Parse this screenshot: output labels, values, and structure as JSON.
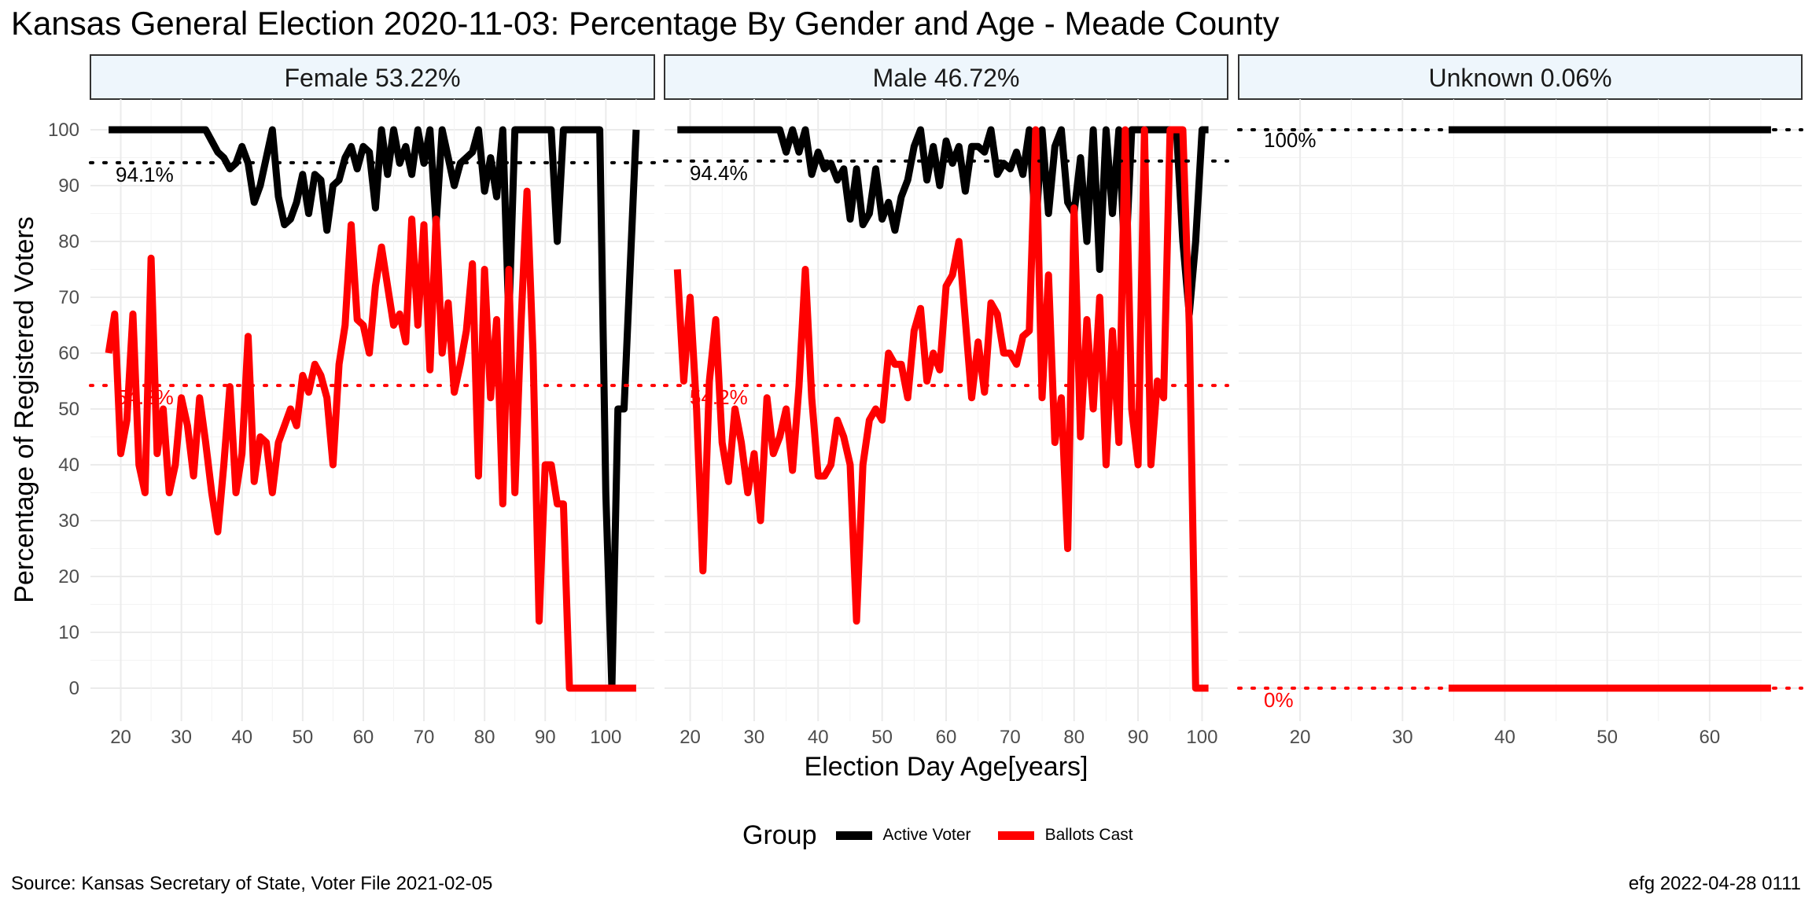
{
  "chart_data": {
    "type": "line",
    "title": "Kansas General Election 2020-11-03:  Percentage By Gender and Age - Meade County",
    "xlabel": "Election Day Age[years]",
    "ylabel": "Percentage of Registered Voters",
    "ylim": [
      0,
      100
    ],
    "y_ticks": [
      "0",
      "10",
      "20",
      "30",
      "40",
      "50",
      "60",
      "70",
      "80",
      "90",
      "100"
    ],
    "grid": true,
    "legend": {
      "title": "Group",
      "placement": "bottom",
      "entries": [
        {
          "name": "Active Voter",
          "color": "#000000"
        },
        {
          "name": "Ballots Cast",
          "color": "#ff0000"
        }
      ]
    },
    "panels": [
      {
        "strip": "Female 53.22%",
        "xlim": [
          15,
          108
        ],
        "x_ticks": [
          "20",
          "30",
          "40",
          "50",
          "60",
          "70",
          "80",
          "90",
          "100"
        ],
        "reference_lines": [
          {
            "series": "Active Voter",
            "value": 94.1,
            "label": "94.1%"
          },
          {
            "series": "Ballots Cast",
            "value": 54.2,
            "label": "54.2%"
          }
        ],
        "series": [
          {
            "name": "Active Voter",
            "color": "#000000",
            "x": [
              18,
              19,
              20,
              22,
              24,
              26,
              28,
              30,
              32,
              33,
              34,
              35,
              36,
              37,
              38,
              39,
              40,
              41,
              42,
              43,
              44,
              45,
              46,
              47,
              48,
              49,
              50,
              51,
              52,
              53,
              54,
              55,
              56,
              57,
              58,
              59,
              60,
              61,
              62,
              63,
              64,
              65,
              66,
              67,
              68,
              69,
              70,
              71,
              72,
              73,
              74,
              75,
              76,
              77,
              78,
              79,
              80,
              81,
              82,
              83,
              84,
              85,
              86,
              87,
              88,
              89,
              90,
              91,
              92,
              93,
              94,
              95,
              96,
              97,
              98,
              99,
              100,
              101,
              102,
              103,
              104,
              105
            ],
            "y": [
              100,
              100,
              100,
              100,
              100,
              100,
              100,
              100,
              100,
              100,
              100,
              98,
              96,
              95,
              93,
              94,
              97,
              94,
              87,
              90,
              95,
              100,
              88,
              83,
              84,
              87,
              92,
              85,
              92,
              91,
              82,
              90,
              91,
              95,
              97,
              93,
              97,
              96,
              86,
              100,
              92,
              100,
              94,
              97,
              92,
              100,
              94,
              100,
              83,
              100,
              95,
              90,
              94,
              95,
              96,
              100,
              89,
              95,
              88,
              100,
              66,
              100,
              100,
              100,
              100,
              100,
              100,
              100,
              80,
              100,
              100,
              100,
              100,
              100,
              100,
              100,
              35,
              0,
              50,
              50,
              75,
              100
            ]
          },
          {
            "name": "Ballots Cast",
            "color": "#ff0000",
            "x": [
              18,
              19,
              20,
              21,
              22,
              23,
              24,
              25,
              26,
              27,
              28,
              29,
              30,
              31,
              32,
              33,
              34,
              35,
              36,
              37,
              38,
              39,
              40,
              41,
              42,
              43,
              44,
              45,
              46,
              47,
              48,
              49,
              50,
              51,
              52,
              53,
              54,
              55,
              56,
              57,
              58,
              59,
              60,
              61,
              62,
              63,
              64,
              65,
              66,
              67,
              68,
              69,
              70,
              71,
              72,
              73,
              74,
              75,
              76,
              77,
              78,
              79,
              80,
              81,
              82,
              83,
              84,
              85,
              86,
              87,
              88,
              89,
              90,
              91,
              92,
              93,
              94,
              95,
              96,
              97,
              98,
              99,
              100,
              101,
              102,
              103,
              104,
              105
            ],
            "y": [
              60,
              67,
              42,
              48,
              67,
              40,
              35,
              77,
              42,
              50,
              35,
              40,
              52,
              47,
              38,
              52,
              44,
              35,
              28,
              40,
              54,
              35,
              42,
              63,
              37,
              45,
              44,
              35,
              44,
              47,
              50,
              47,
              56,
              53,
              58,
              56,
              52,
              40,
              58,
              65,
              83,
              66,
              65,
              60,
              72,
              79,
              72,
              65,
              67,
              62,
              84,
              65,
              83,
              57,
              84,
              60,
              69,
              53,
              58,
              64,
              76,
              38,
              75,
              52,
              66,
              33,
              75,
              35,
              65,
              89,
              60,
              12,
              40,
              40,
              33,
              33,
              0,
              0,
              0,
              0,
              0,
              0,
              0,
              0,
              0,
              0,
              0,
              0
            ]
          }
        ]
      },
      {
        "strip": "Male 46.72%",
        "xlim": [
          16,
          104
        ],
        "x_ticks": [
          "20",
          "30",
          "40",
          "50",
          "60",
          "70",
          "80",
          "90",
          "100"
        ],
        "reference_lines": [
          {
            "series": "Active Voter",
            "value": 94.4,
            "label": "94.4%"
          },
          {
            "series": "Ballots Cast",
            "value": 54.2,
            "label": "54.2%"
          }
        ],
        "series": [
          {
            "name": "Active Voter",
            "color": "#000000",
            "x": [
              18,
              20,
              22,
              24,
              26,
              28,
              30,
              32,
              33,
              34,
              35,
              36,
              37,
              38,
              39,
              40,
              41,
              42,
              43,
              44,
              45,
              46,
              47,
              48,
              49,
              50,
              51,
              52,
              53,
              54,
              55,
              56,
              57,
              58,
              59,
              60,
              61,
              62,
              63,
              64,
              65,
              66,
              67,
              68,
              69,
              70,
              71,
              72,
              73,
              74,
              75,
              76,
              77,
              78,
              79,
              80,
              81,
              82,
              83,
              84,
              85,
              86,
              87,
              88,
              89,
              90,
              91,
              92,
              93,
              94,
              95,
              96,
              97,
              98,
              99,
              100,
              101
            ],
            "y": [
              100,
              100,
              100,
              100,
              100,
              100,
              100,
              100,
              100,
              100,
              96,
              100,
              96,
              100,
              92,
              96,
              93,
              94,
              91,
              93,
              84,
              93,
              83,
              85,
              93,
              84,
              87,
              82,
              88,
              91,
              97,
              100,
              91,
              97,
              90,
              98,
              94,
              97,
              89,
              97,
              97,
              96,
              100,
              92,
              94,
              93,
              96,
              92,
              100,
              82,
              100,
              85,
              97,
              100,
              87,
              85,
              95,
              80,
              100,
              75,
              100,
              85,
              100,
              75,
              100,
              100,
              100,
              100,
              100,
              100,
              100,
              100,
              80,
              67,
              80,
              100,
              100
            ]
          },
          {
            "name": "Ballots Cast",
            "color": "#ff0000",
            "x": [
              18,
              19,
              20,
              21,
              22,
              23,
              24,
              25,
              26,
              27,
              28,
              29,
              30,
              31,
              32,
              33,
              34,
              35,
              36,
              37,
              38,
              39,
              40,
              41,
              42,
              43,
              44,
              45,
              46,
              47,
              48,
              49,
              50,
              51,
              52,
              53,
              54,
              55,
              56,
              57,
              58,
              59,
              60,
              61,
              62,
              63,
              64,
              65,
              66,
              67,
              68,
              69,
              70,
              71,
              72,
              73,
              74,
              75,
              76,
              77,
              78,
              79,
              80,
              81,
              82,
              83,
              84,
              85,
              86,
              87,
              88,
              89,
              90,
              91,
              92,
              93,
              94,
              95,
              96,
              97,
              98,
              99,
              100,
              101
            ],
            "y": [
              75,
              55,
              70,
              50,
              21,
              55,
              66,
              44,
              37,
              50,
              44,
              35,
              42,
              30,
              52,
              42,
              45,
              50,
              39,
              54,
              75,
              52,
              38,
              38,
              40,
              48,
              45,
              40,
              12,
              40,
              48,
              50,
              48,
              60,
              58,
              58,
              52,
              64,
              68,
              55,
              60,
              57,
              72,
              74,
              80,
              66,
              52,
              62,
              53,
              69,
              67,
              60,
              60,
              58,
              63,
              64,
              100,
              52,
              74,
              44,
              52,
              25,
              86,
              45,
              66,
              50,
              70,
              40,
              64,
              44,
              100,
              50,
              40,
              100,
              40,
              55,
              52,
              100,
              100,
              100,
              65,
              0,
              0,
              0
            ]
          }
        ]
      },
      {
        "strip": "Unknown 0.06%",
        "xlim": [
          14,
          69
        ],
        "x_ticks": [
          "20",
          "30",
          "40",
          "50",
          "60"
        ],
        "reference_lines": [
          {
            "series": "Active Voter",
            "value": 100,
            "label": "100%"
          },
          {
            "series": "Ballots Cast",
            "value": 0,
            "label": "0%"
          }
        ],
        "series": [
          {
            "name": "Active Voter",
            "color": "#000000",
            "x": [
              34.5,
              66
            ],
            "y": [
              100,
              100
            ]
          },
          {
            "name": "Ballots Cast",
            "color": "#ff0000",
            "x": [
              34.5,
              66
            ],
            "y": [
              0,
              0
            ]
          }
        ]
      }
    ]
  },
  "captions": {
    "source": "Source:  Kansas Secretary of State, Voter File  2021-02-05",
    "stamp": "efg 2022-04-28 0111"
  }
}
